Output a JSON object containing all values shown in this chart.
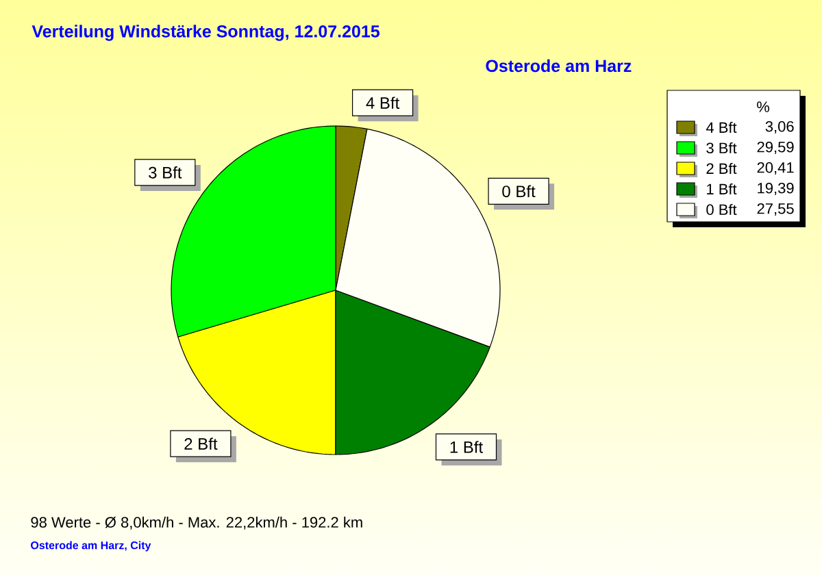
{
  "chart_data": {
    "type": "pie",
    "title": "Verteilung Windstärke Sonntag, 12.07.2015",
    "subtitle": "Osterode am Harz",
    "legend_title": "%",
    "categories": [
      "4 Bft",
      "3 Bft",
      "2 Bft",
      "1 Bft",
      "0 Bft"
    ],
    "values": [
      3.06,
      29.59,
      20.41,
      19.39,
      27.55
    ],
    "value_labels": [
      "3,06",
      "29,59",
      "20,41",
      "19,39",
      "27,55"
    ],
    "colors": [
      "#808000",
      "#00ff00",
      "#ffff00",
      "#008000",
      "#fffff5"
    ],
    "legend": "top right",
    "annotations": [
      "98 Werte - Ø 8,0km/h - Max. 22,2km/h - 192.2 km",
      "Osterode am Harz, City"
    ]
  }
}
